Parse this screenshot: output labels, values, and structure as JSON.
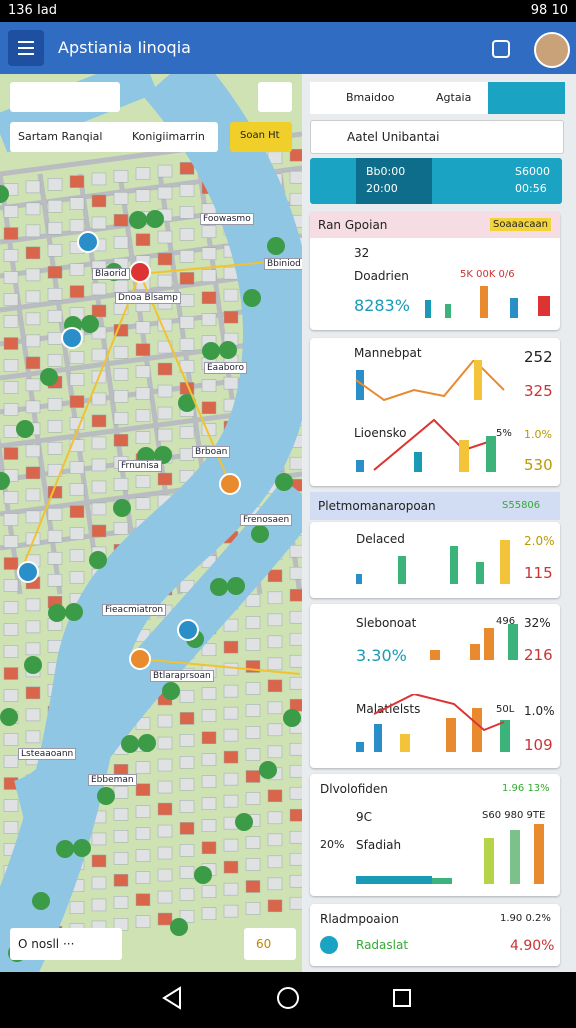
{
  "status_bar": {
    "time": "136 Iad",
    "battery": "98 10"
  },
  "app_bar": {
    "title": "Apstiania Iinoqia"
  },
  "map": {
    "search": {
      "place": "Sartam Ranqial",
      "region": "Konigiimarrin",
      "button": "Soan Ht"
    },
    "labels": [
      "Foowasmo",
      "Blaorid",
      "Dnoa Blsamp",
      "Bbiniod",
      "Eaaboro",
      "Frnunisa",
      "Brboan",
      "Frenosaen",
      "Fieacmiatron",
      "Btlaraprsoan",
      "Lsteaaoann",
      "Ebbeman"
    ],
    "footer": {
      "filter": "O nosll ···",
      "count": "60"
    }
  },
  "panel": {
    "tabs": [
      "Bmaidoo",
      "Agtaia"
    ],
    "search": "Aatel Unibantai",
    "banner": [
      "Bb0:00",
      "20:00",
      "S6000",
      "00:56"
    ],
    "cards": [
      {
        "title": "Ran Gpoian",
        "badge": "Soaaacaan",
        "rows": [
          "32",
          "Doadrien",
          "5K  00K  0/6",
          "8283%"
        ]
      },
      {
        "rows": [
          "Mannebpat",
          "252",
          "325",
          "Lioensko",
          "5%",
          "1.0%",
          "530"
        ]
      },
      {
        "section": "Pletmomanaropoan",
        "badge": "S55806",
        "rows": [
          "Delaced",
          "2.0%",
          "115"
        ]
      },
      {
        "rows": [
          "Slebonoat",
          "496",
          "32%",
          "3.30%",
          "216",
          "Malatlelsts",
          "50L",
          "1.0%",
          "109"
        ]
      },
      {
        "title": "Dlvolofiden",
        "badge": "1.96 13%",
        "rows": [
          "9C",
          "S60 980 9TE",
          "20%",
          "Sfadiah"
        ]
      },
      {
        "title": "Rladmpoaion",
        "badge": "1.90 0.2%",
        "rows": [
          "Radaslat",
          "4.90%"
        ]
      }
    ]
  }
}
